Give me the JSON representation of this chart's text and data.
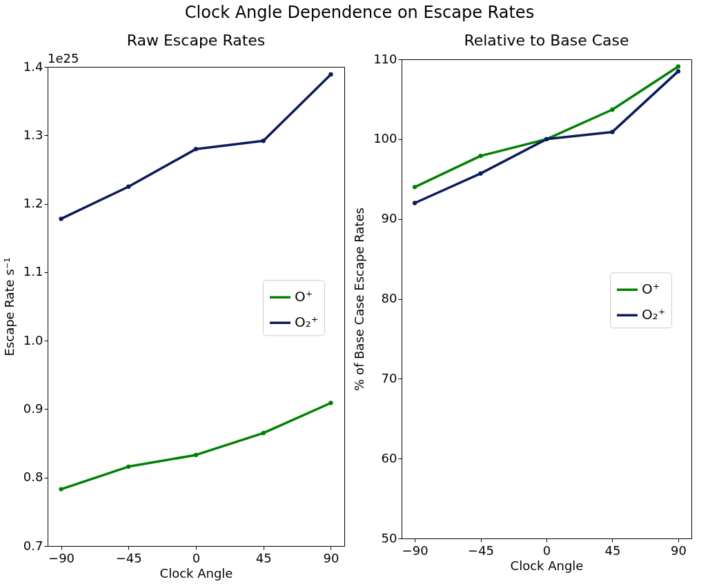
{
  "chart_data": [
    {
      "type": "line",
      "title": "Raw Escape Rates",
      "xlabel": "Clock Angle",
      "ylabel": "Escape Rate s⁻¹",
      "annotations": [
        "Clock Angle Dependence on Escape Rates",
        "1e25"
      ],
      "x": [
        -90,
        -45,
        0,
        45,
        90
      ],
      "series": [
        {
          "name": "O⁺",
          "color": "#008000",
          "values": [
            0.783,
            0.816,
            0.833,
            0.865,
            0.909
          ]
        },
        {
          "name": "O₂⁺",
          "color": "#0b1a5b",
          "values": [
            1.178,
            1.225,
            1.28,
            1.292,
            1.389
          ]
        }
      ],
      "xlim": [
        -99,
        99
      ],
      "xticks": [
        -90,
        -45,
        0,
        45,
        90
      ],
      "ylim": [
        0.7,
        1.4
      ],
      "yticks": [
        0.7,
        0.8,
        0.9,
        {
          "value": 1,
          "label": "1.0"
        },
        1.1,
        1.2,
        1.3,
        1.4
      ],
      "legend": "right",
      "marker": "circle",
      "line_style": "solid"
    },
    {
      "type": "line",
      "title": "Relative to Base Case",
      "xlabel": "Clock Angle",
      "ylabel": "% of Base Case Escape Rates",
      "x": [
        -90,
        -45,
        0,
        45,
        90
      ],
      "series": [
        {
          "name": "O⁺",
          "color": "#008000",
          "values": [
            94.0,
            97.9,
            100.0,
            103.7,
            109.1
          ]
        },
        {
          "name": "O₂⁺",
          "color": "#0b1a5b",
          "values": [
            92.0,
            95.7,
            100.0,
            100.9,
            108.5
          ]
        }
      ],
      "xlim": [
        -99,
        99
      ],
      "xticks": [
        -90,
        -45,
        0,
        45,
        90
      ],
      "ylim": [
        50,
        110
      ],
      "yticks": [
        50,
        60,
        70,
        80,
        90,
        100,
        110
      ],
      "legend": "right",
      "marker": "circle",
      "line_style": "solid"
    }
  ]
}
